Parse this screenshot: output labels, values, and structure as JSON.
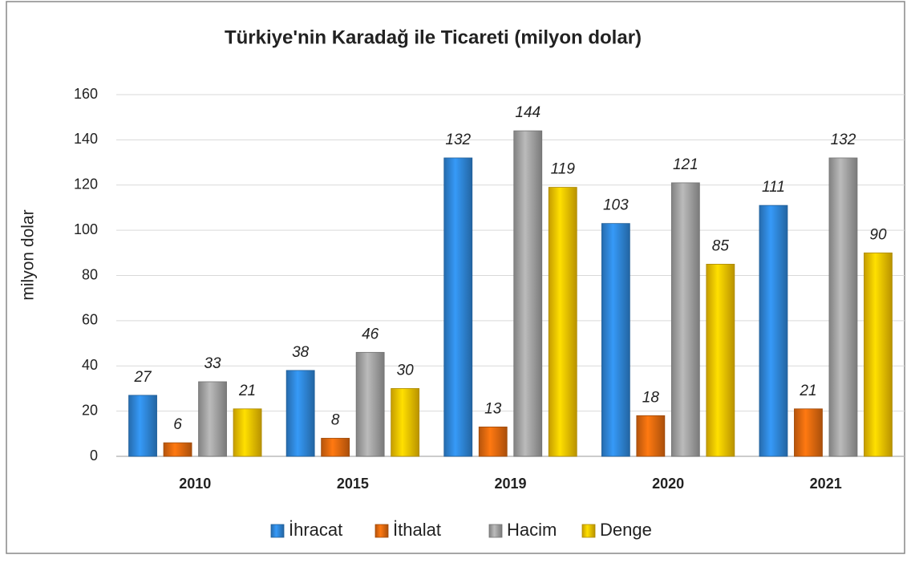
{
  "chart_data": {
    "type": "bar",
    "title": "Türkiye'nin Karadağ ile Ticareti (milyon dolar)",
    "y_label": "milyon dolar",
    "categories": [
      "2010",
      "2015",
      "2019",
      "2020",
      "2021"
    ],
    "series": [
      {
        "name": "İhracat",
        "color": "#2f86d8",
        "values": [
          27,
          38,
          132,
          103,
          111
        ]
      },
      {
        "name": "İthalat",
        "color": "#e2690f",
        "values": [
          6,
          8,
          13,
          18,
          21
        ]
      },
      {
        "name": "Hacim",
        "color": "#a3a3a3",
        "values": [
          33,
          46,
          144,
          121,
          132
        ]
      },
      {
        "name": "Denge",
        "color": "#f6c300",
        "values": [
          21,
          30,
          119,
          85,
          90
        ]
      }
    ],
    "ylim": [
      0,
      160
    ],
    "yticks": [
      0,
      20,
      40,
      60,
      80,
      100,
      120,
      140,
      160
    ],
    "grid": true,
    "legend": "bottom"
  }
}
